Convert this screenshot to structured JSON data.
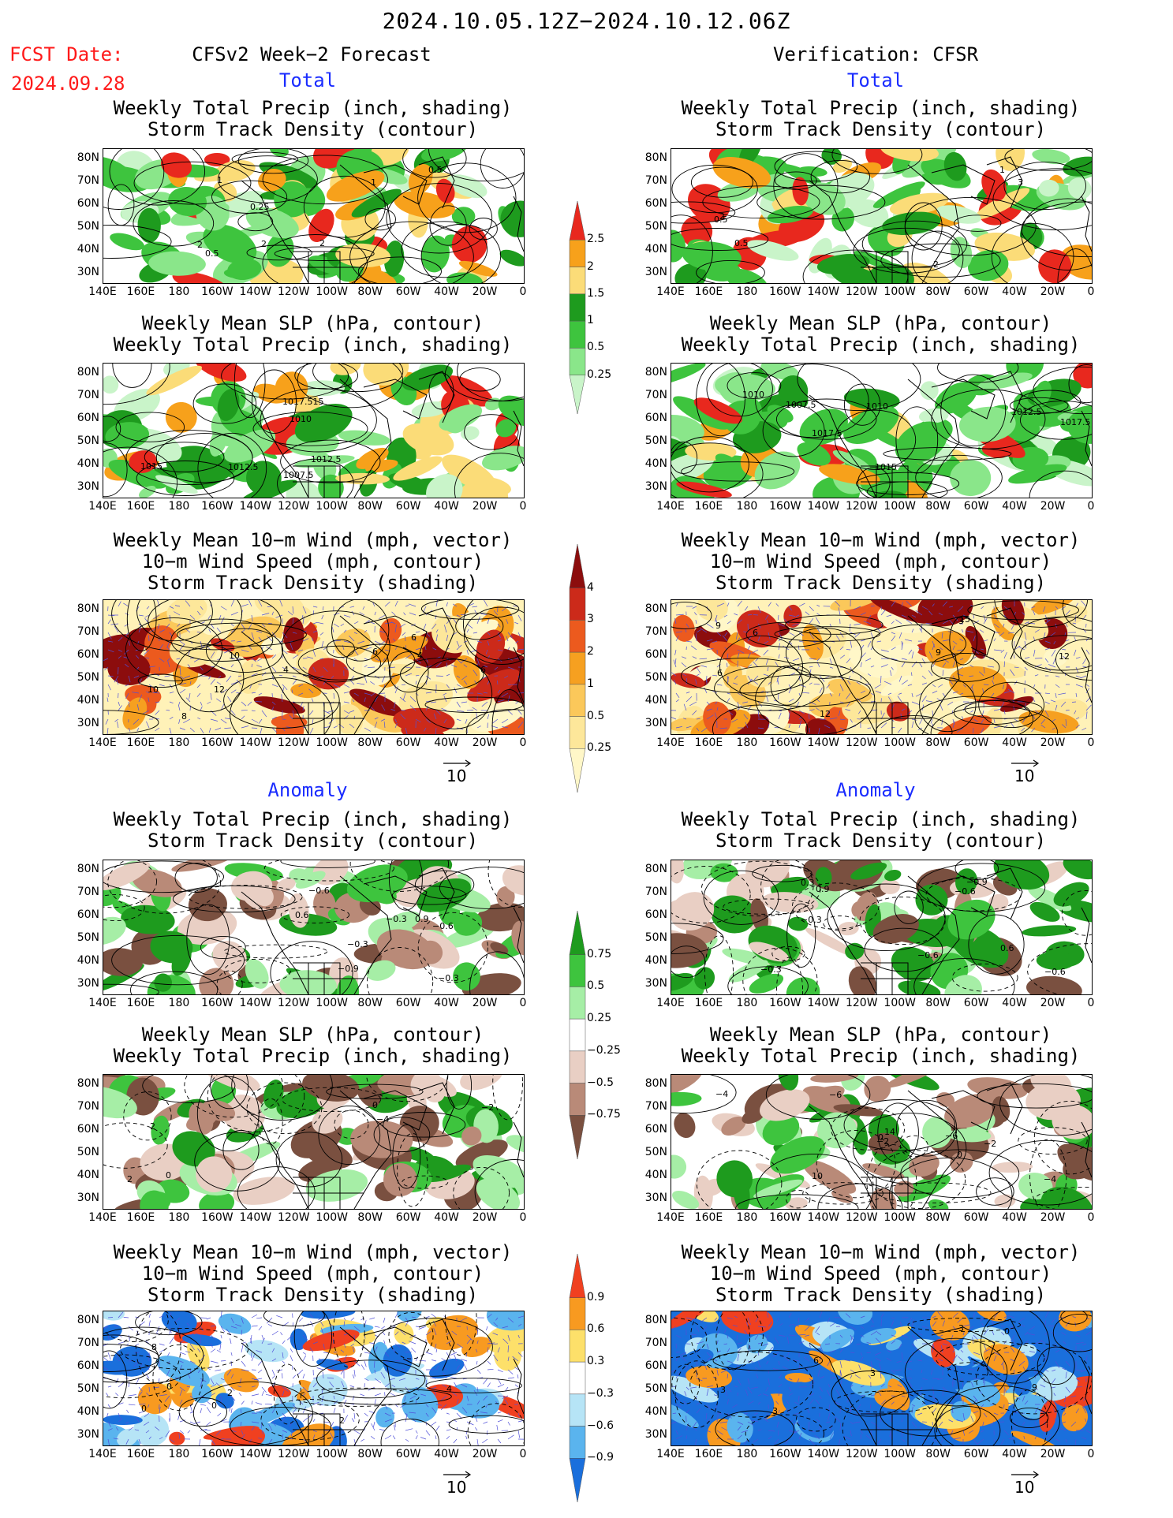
{
  "header": {
    "date_range": "2024.10.05.12Z−2024.10.12.06Z",
    "fcst_label": "FCST Date:",
    "fcst_date": "2024.09.28",
    "left_title": "CFSv2 Week−2 Forecast",
    "right_title": "Verification: CFSR",
    "total_label": "Total",
    "anomaly_label": "Anomaly"
  },
  "panel_titles": {
    "precip_storm": [
      "Weekly Total Precip (inch, shading)",
      "Storm Track Density (contour)"
    ],
    "slp_precip": [
      "Weekly Mean SLP (hPa, contour)",
      "Weekly Total Precip (inch, shading)"
    ],
    "wind_storm": [
      "Weekly Mean 10−m Wind (mph, vector)",
      "10−m Wind Speed (mph, contour)",
      "Storm Track Density (shading)"
    ]
  },
  "axes": {
    "lat_labels": [
      "80N",
      "70N",
      "60N",
      "50N",
      "40N",
      "30N"
    ],
    "lon_labels": [
      "140E",
      "160E",
      "180",
      "160W",
      "140W",
      "120W",
      "100W",
      "80W",
      "60W",
      "40W",
      "20W",
      "0"
    ]
  },
  "vector_ref": "10",
  "colorbars": {
    "precip_total": {
      "labels": [
        "2.5",
        "2",
        "1.5",
        "1",
        "0.5",
        "0.25"
      ],
      "colors": [
        "#e8281e",
        "#f7a11b",
        "#fbdc78",
        "#1e9b1e",
        "#3ec43e",
        "#8ae68a",
        "#c9f4c9"
      ]
    },
    "storm_total": {
      "labels": [
        "4",
        "3",
        "2",
        "1",
        "0.5",
        "0.25"
      ],
      "colors": [
        "#8c0d0d",
        "#cc2a1a",
        "#ec5a1e",
        "#f6a020",
        "#fbc85a",
        "#fde79a",
        "#fff7c8"
      ]
    },
    "precip_anom": {
      "labels": [
        "0.75",
        "0.5",
        "0.25",
        "−0.25",
        "−0.5",
        "−0.75"
      ],
      "colors": [
        "#1e9b1e",
        "#3ec43e",
        "#a6eea6",
        "#ffffff",
        "#e9cfc4",
        "#b98a78",
        "#7a5040"
      ]
    },
    "storm_anom": {
      "labels": [
        "0.9",
        "0.6",
        "0.3",
        "−0.3",
        "−0.6",
        "−0.9"
      ],
      "colors": [
        "#f04020",
        "#f89a20",
        "#fde06a",
        "#ffffff",
        "#b6e4f6",
        "#5ab4ee",
        "#1a6fdc"
      ]
    }
  },
  "contour_labels": {
    "l1": [
      "0.5",
      "1",
      "2",
      "0.25",
      "0.5",
      "1",
      "2",
      "2"
    ],
    "r1": [
      "0.5",
      "2",
      "0.5",
      "1",
      "2",
      "3"
    ],
    "l2": [
      "1015",
      "1007.5",
      "1010",
      "1012.5",
      "1017.515",
      "1012.5"
    ],
    "r2": [
      "1017.5",
      "1007.5",
      "1010",
      "1017.5",
      "1012.5",
      "1015",
      "1010"
    ],
    "l3": [
      "10",
      "8",
      "6",
      "12",
      "10",
      "4",
      "6",
      "4",
      "6"
    ],
    "r3": [
      "9",
      "12",
      "15",
      "12",
      "3",
      "6",
      "9",
      "6"
    ],
    "l4": [
      "0.6",
      "0.9",
      "−0.3",
      "−0.6",
      "−0.3",
      "−0.6",
      "−0.9",
      "−0.3"
    ],
    "r4": [
      "−0.9",
      "−0.6",
      "−0.3",
      "0.9",
      "0.3",
      "−0.6",
      "0.6",
      "−0.3",
      "−0.6"
    ],
    "l5": [
      "0",
      "−2",
      "−4",
      "2",
      "2",
      "0"
    ],
    "r5": [
      "−4",
      "−2",
      "−6",
      "−2",
      "0",
      "10",
      "14",
      "−6",
      "0",
      "−4"
    ],
    "l6": [
      "8",
      "4",
      "2",
      "0",
      "0",
      "2",
      "0"
    ],
    "r6": [
      "3",
      "3",
      "6",
      "3",
      "3",
      "0",
      "9"
    ]
  }
}
